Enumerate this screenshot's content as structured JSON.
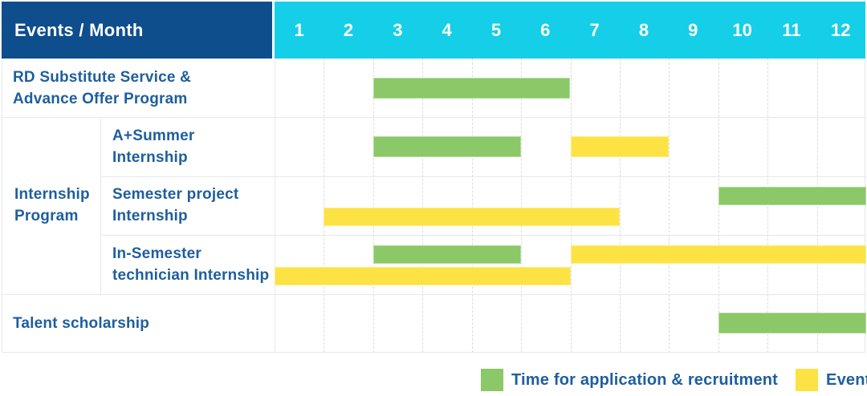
{
  "header": {
    "corner_label": "Events / Month",
    "months": [
      "1",
      "2",
      "3",
      "4",
      "5",
      "6",
      "7",
      "8",
      "9",
      "10",
      "11",
      "12"
    ]
  },
  "colors": {
    "header_bg": "#0E4E8C",
    "months_bg": "#15CFE8",
    "label_text": "#1E5E9E",
    "green": "#8BC868",
    "yellow": "#FDE244",
    "grid": "#E8E8E8",
    "grid_dash": "#DCDCDC"
  },
  "chart_data": {
    "type": "table",
    "subtype": "gantt",
    "x_axis": {
      "label": "Month",
      "ticks": [
        1,
        2,
        3,
        4,
        5,
        6,
        7,
        8,
        9,
        10,
        11,
        12
      ]
    },
    "groups": [
      {
        "label": "Internship Program",
        "label_lines": [
          "Internship",
          "Program"
        ],
        "row_indexes": [
          1,
          2,
          3
        ]
      }
    ],
    "rows": [
      {
        "label": "RD Substitute Service & Advance Offer Program",
        "label_lines": [
          "RD Substitute Service &",
          "Advance Offer Program"
        ],
        "lines": [
          [
            {
              "series": "application",
              "start_month": 3,
              "end_month": 6
            }
          ]
        ]
      },
      {
        "label": "A+Summer Internship",
        "label_lines": [
          "A+Summer",
          "Internship"
        ],
        "lines": [
          [
            {
              "series": "application",
              "start_month": 3,
              "end_month": 5
            },
            {
              "series": "events",
              "start_month": 7,
              "end_month": 8
            }
          ]
        ]
      },
      {
        "label": "Semester project Internship",
        "label_lines": [
          "Semester project",
          "Internship"
        ],
        "lines": [
          [
            {
              "series": "application",
              "start_month": 10,
              "end_month": 12
            }
          ],
          [
            {
              "series": "events",
              "start_month": 2,
              "end_month": 7
            }
          ]
        ]
      },
      {
        "label": "In-Semester technician Internship",
        "label_lines": [
          "In-Semester",
          "technician Internship"
        ],
        "lines": [
          [
            {
              "series": "application",
              "start_month": 3,
              "end_month": 5
            },
            {
              "series": "events",
              "start_month": 7,
              "end_month": 12
            }
          ],
          [
            {
              "series": "events",
              "start_month": 1,
              "end_month": 6
            }
          ]
        ]
      },
      {
        "label": "Talent scholarship",
        "label_lines": [
          "Talent scholarship"
        ],
        "lines": [
          [
            {
              "series": "application",
              "start_month": 10,
              "end_month": 12
            }
          ]
        ]
      }
    ],
    "legend": [
      {
        "series": "application",
        "label": "Time for application & recruitment",
        "color": "#8BC868"
      },
      {
        "series": "events",
        "label": "Events",
        "color": "#FDE244"
      }
    ],
    "layout_hints": {
      "grid": "dashed vertical month lines",
      "legend_position": "bottom-right"
    }
  }
}
